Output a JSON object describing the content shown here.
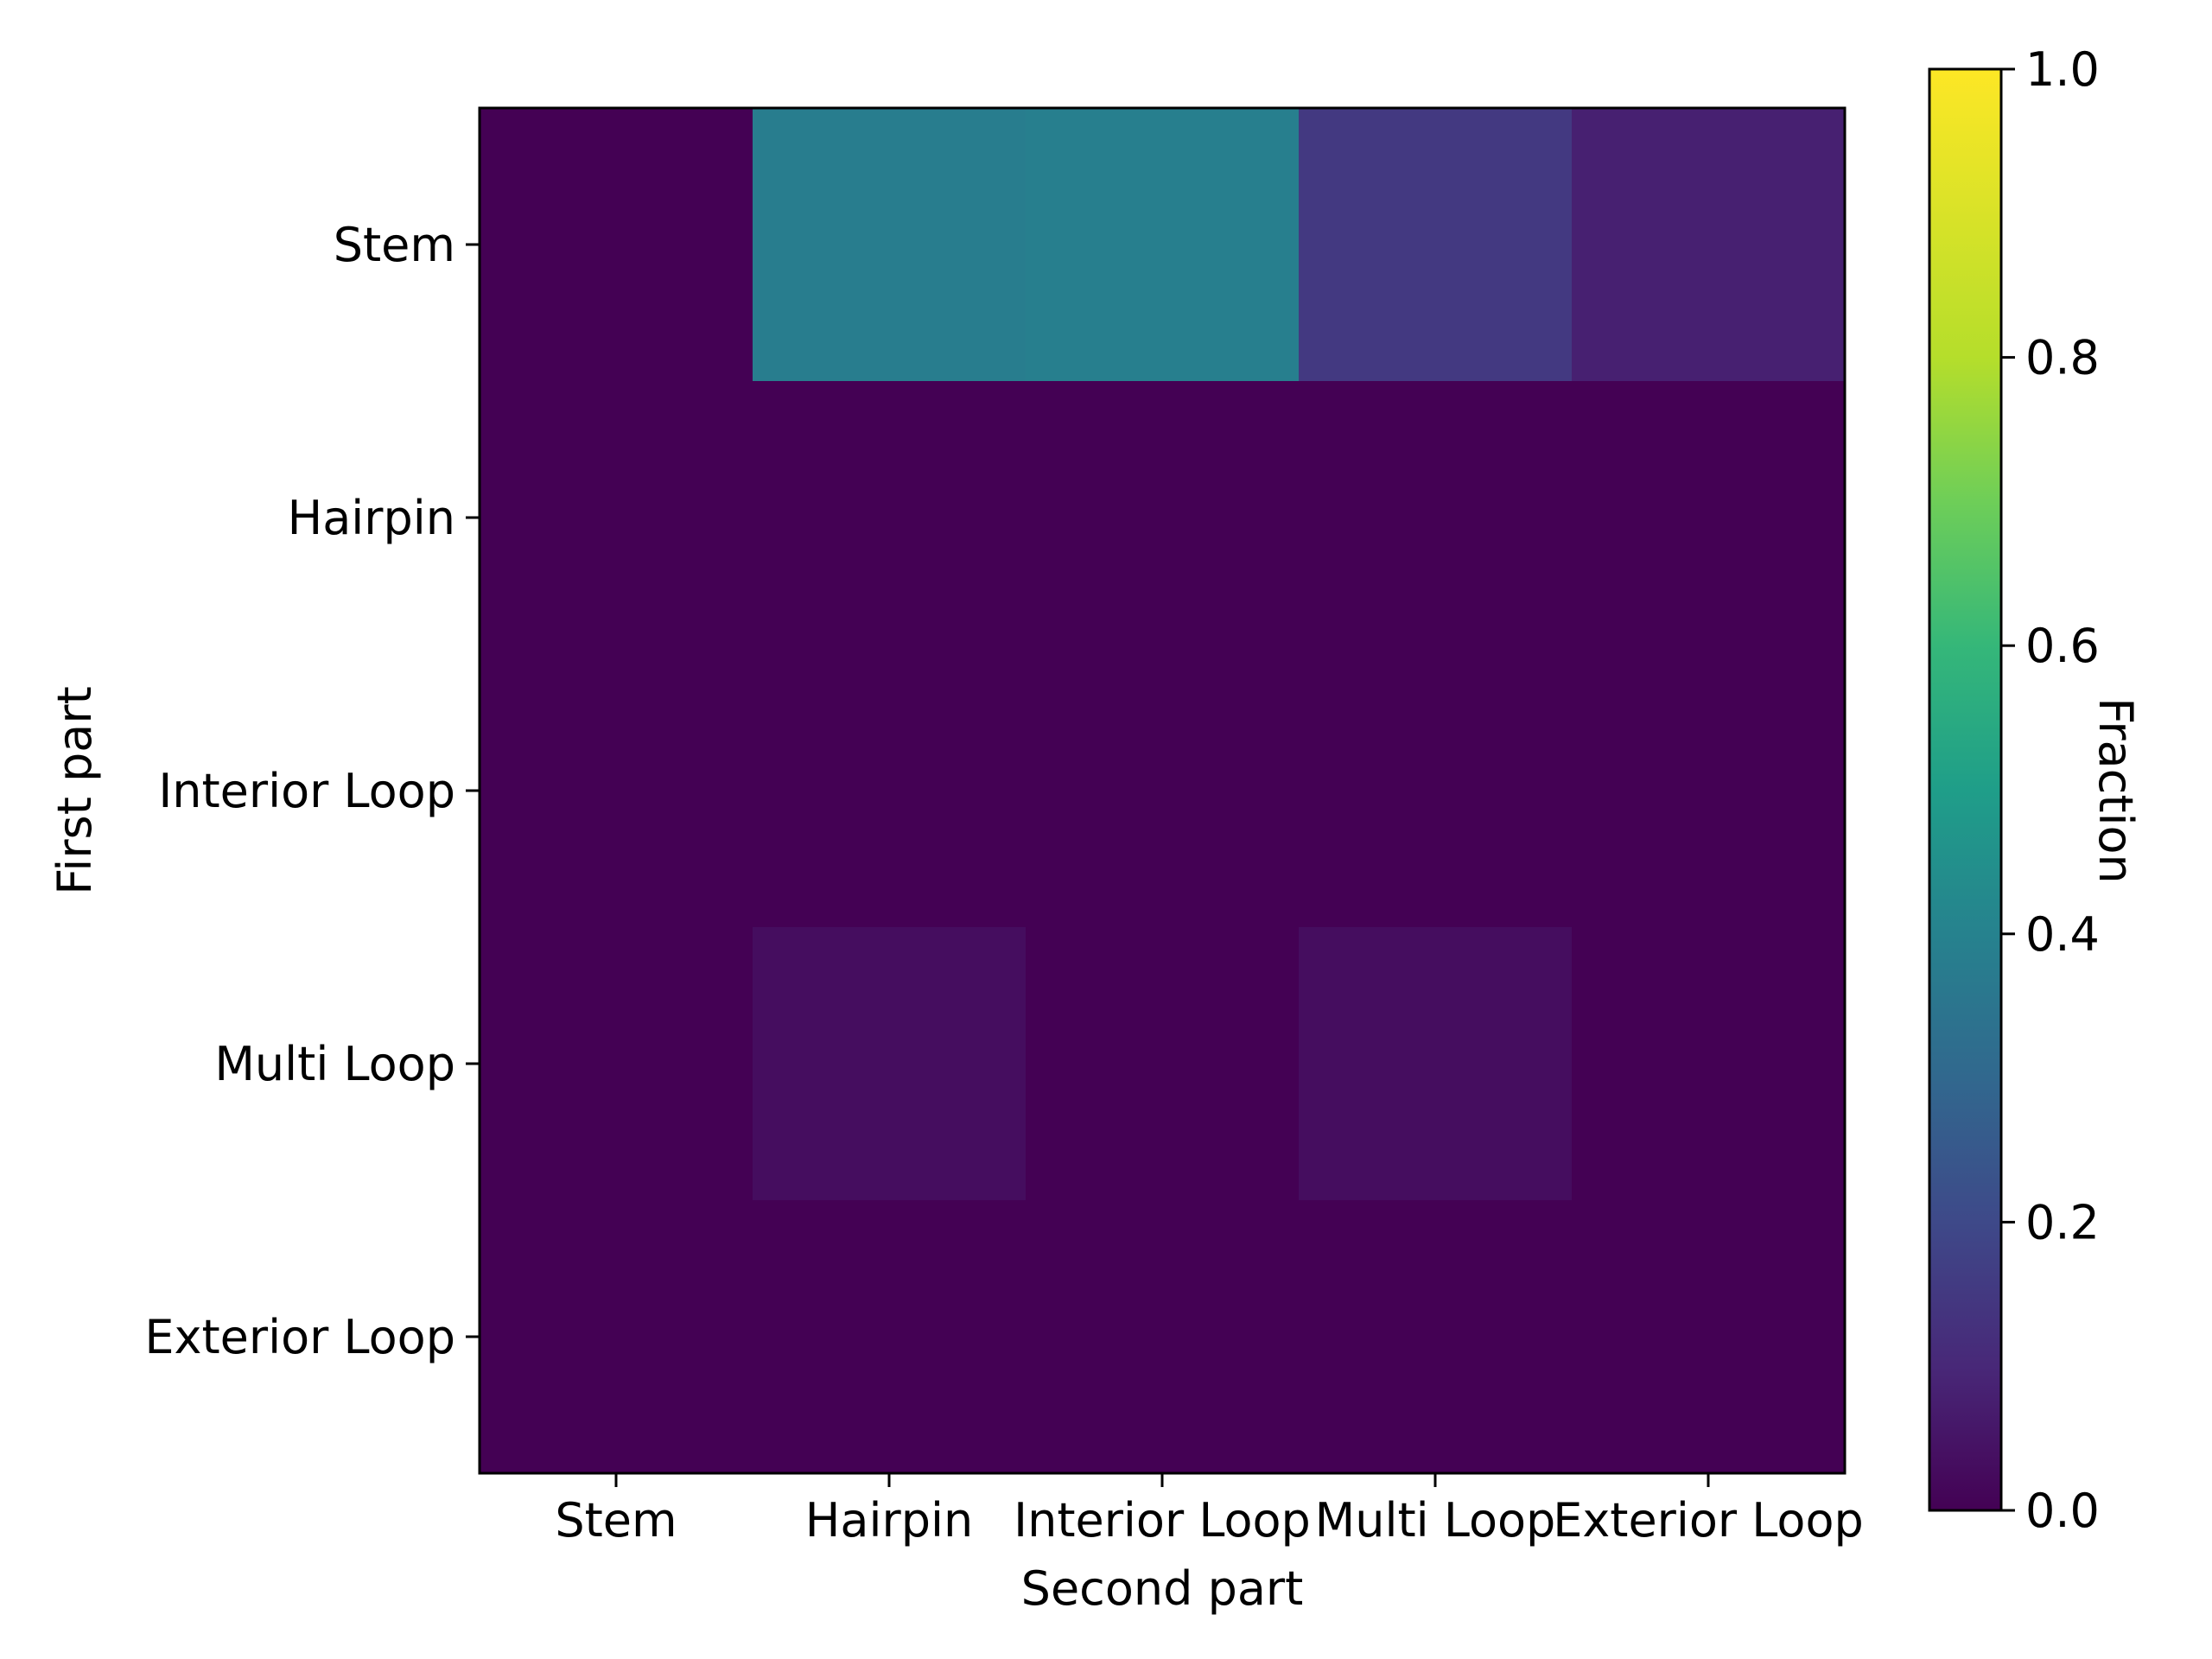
{
  "chart_data": {
    "type": "heatmap",
    "title": "",
    "xlabel": "Second part",
    "ylabel": "First part",
    "x_categories": [
      "Stem",
      "Hairpin",
      "Interior Loop",
      "Multi Loop",
      "Exterior Loop"
    ],
    "y_categories": [
      "Stem",
      "Hairpin",
      "Interior Loop",
      "Multi Loop",
      "Exterior Loop"
    ],
    "values": [
      [
        0.0,
        0.38,
        0.39,
        0.15,
        0.08
      ],
      [
        0.0,
        0.0,
        0.0,
        0.0,
        0.0
      ],
      [
        0.0,
        0.0,
        0.0,
        0.0,
        0.0
      ],
      [
        0.0,
        0.03,
        0.0,
        0.03,
        0.0
      ],
      [
        0.0,
        0.0,
        0.0,
        0.0,
        0.0
      ]
    ],
    "colorbar": {
      "label": "Fraction",
      "range": [
        0.0,
        1.0
      ],
      "ticks": [
        "0.0",
        "0.2",
        "0.4",
        "0.6",
        "0.8",
        "1.0"
      ],
      "colormap": "viridis"
    },
    "grid": false
  }
}
